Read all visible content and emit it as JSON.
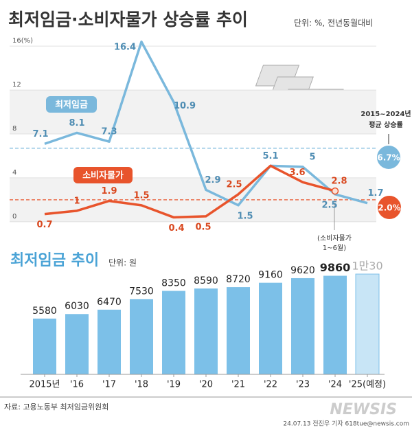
{
  "chart_data": [
    {
      "type": "line",
      "title": "최저임금·소비자물가 상승률 추이",
      "subtitle": "단위: %, 전년동월대비",
      "categories": [
        null,
        null,
        null,
        null,
        null,
        null,
        null,
        null,
        null,
        null,
        null
      ],
      "series": [
        {
          "name": "최저임금",
          "color": "#7ab8dc",
          "values": [
            7.1,
            8.1,
            7.3,
            16.4,
            10.9,
            2.9,
            1.5,
            5.1,
            5.0,
            2.5,
            1.7
          ]
        },
        {
          "name": "소비자물가",
          "color": "#e8542c",
          "values": [
            0.7,
            1.0,
            1.9,
            1.5,
            0.4,
            0.5,
            2.5,
            5.1,
            3.6,
            2.8,
            null
          ]
        }
      ],
      "ylim": [
        -0.7,
        17.2
      ],
      "yticks": [
        0,
        4,
        8,
        12,
        {
          "value": 16,
          "label": "16(%)"
        }
      ],
      "grid": true,
      "reference_lines": [
        {
          "value": 6.7,
          "value_label": "6.7%",
          "color": "#7ab8dc"
        },
        {
          "value": 2.0,
          "value_label": "2.0%",
          "color": "#e8542c"
        }
      ],
      "annotations": [
        [
          "2015~2024년",
          "평균 상승률"
        ],
        [
          "(소비자물가",
          "1~6월)"
        ]
      ]
    },
    {
      "type": "bar",
      "title": "최저임금 추이",
      "subtitle": "단위: 원",
      "categories": [
        "2015년",
        "'16",
        "'17",
        "'18",
        "'19",
        "'20",
        "'21",
        "'22",
        "'23",
        "'24",
        "'25(예정)"
      ],
      "values": [
        5580,
        6030,
        6470,
        7530,
        8350,
        8590,
        8720,
        9160,
        9620,
        9860,
        10030
      ],
      "value_labels": [
        "5580",
        "6030",
        "6470",
        "7530",
        "8350",
        "8590",
        "8720",
        "9160",
        "9620",
        "9860",
        "1만30"
      ],
      "colors": [
        "#7cc0e8",
        "#7cc0e8",
        "#7cc0e8",
        "#7cc0e8",
        "#7cc0e8",
        "#7cc0e8",
        "#7cc0e8",
        "#7cc0e8",
        "#7cc0e8",
        "#7cc0e8",
        "#c8e5f6"
      ]
    }
  ],
  "source": "자료: 고용노동부 최저임금위원회",
  "credit": "24.07.13 전진우 기자 618tue@newsis.com",
  "logo": "NEWSIS"
}
